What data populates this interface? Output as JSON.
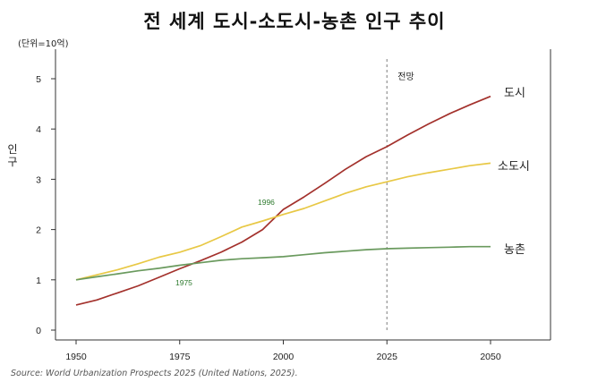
{
  "chart_data": {
    "type": "line",
    "title": "전 세계 도시-소도시-농촌 인구 추이",
    "unit_label": "(단위=10억)",
    "ylabel": "인구",
    "xlabel": "",
    "x_ticks": [
      1950,
      1975,
      2000,
      2025,
      2050
    ],
    "y_ticks": [
      0,
      1,
      2,
      3,
      4,
      5
    ],
    "xlim": [
      1950,
      2050
    ],
    "ylim": [
      0,
      5.5
    ],
    "grid": false,
    "projection_start": 2025,
    "projection_label": "전망",
    "x": [
      1950,
      1955,
      1960,
      1965,
      1970,
      1975,
      1980,
      1985,
      1990,
      1995,
      2000,
      2005,
      2010,
      2015,
      2020,
      2025,
      2030,
      2035,
      2040,
      2045,
      2050
    ],
    "series": [
      {
        "name": "도시",
        "color": "#a3312c",
        "values": [
          0.5,
          0.6,
          0.74,
          0.88,
          1.05,
          1.22,
          1.38,
          1.55,
          1.75,
          2.0,
          2.4,
          2.65,
          2.92,
          3.2,
          3.45,
          3.65,
          3.88,
          4.1,
          4.3,
          4.48,
          4.65
        ]
      },
      {
        "name": "소도시",
        "color": "#e8c845",
        "values": [
          1.0,
          1.1,
          1.2,
          1.32,
          1.45,
          1.55,
          1.68,
          1.86,
          2.05,
          2.17,
          2.3,
          2.42,
          2.57,
          2.72,
          2.85,
          2.95,
          3.05,
          3.13,
          3.2,
          3.27,
          3.32
        ]
      },
      {
        "name": "농촌",
        "color": "#6a9a5e",
        "values": [
          1.0,
          1.06,
          1.12,
          1.18,
          1.23,
          1.29,
          1.34,
          1.39,
          1.42,
          1.44,
          1.46,
          1.5,
          1.54,
          1.57,
          1.6,
          1.62,
          1.63,
          1.64,
          1.65,
          1.66,
          1.66
        ]
      }
    ],
    "annotations": [
      {
        "text": "1996",
        "x": 1996,
        "y": 2.55
      },
      {
        "text": "1975",
        "x": 1975,
        "y": 0.95
      }
    ]
  },
  "source": "Source: World Urbanization Prospects 2025 (United Nations, 2025)."
}
